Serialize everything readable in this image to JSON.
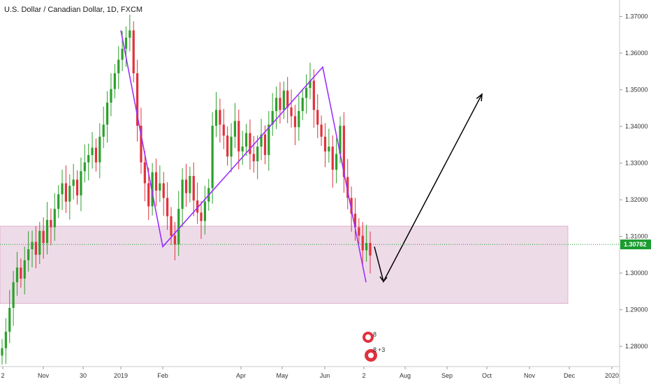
{
  "chart_data": {
    "type": "candlestick",
    "title": "U.S. Dollar / Canadian Dollar, 1D, FXCM",
    "y_ticks": [
      "1.37000",
      "1.36000",
      "1.35000",
      "1.34000",
      "1.33000",
      "1.32000",
      "1.31000",
      "1.30000",
      "1.29000",
      "1.28000"
    ],
    "y_values": [
      1.37,
      1.36,
      1.35,
      1.34,
      1.33,
      1.32,
      1.31,
      1.3,
      1.29,
      1.28
    ],
    "ylim": [
      1.2745,
      1.3745
    ],
    "x_ticks": [
      "2",
      "Nov",
      "30",
      "2019",
      "Feb",
      "Apr",
      "May",
      "Jun",
      "2",
      "Aug",
      "Sep",
      "Oct",
      "Nov",
      "Dec",
      "2020"
    ],
    "current_price": "1.30782",
    "current_price_value": 1.30782,
    "colors": {
      "up": "#2ca02c",
      "down": "#e0323c",
      "pattern": "#9b30ff",
      "zone": "#e8cfe0",
      "price_line": "#1a9c2f",
      "arrow": "#000000"
    },
    "support_zone": {
      "y_low": 1.2917,
      "y_high": 1.3128
    },
    "pattern_line_points": [
      [
        1.3662
      ],
      [
        1.3072
      ],
      [
        1.3562
      ],
      [
        1.2975
      ]
    ],
    "arrow_path": [
      1.3072,
      1.2977,
      1.3488
    ],
    "candles_close": [
      1.2795,
      1.284,
      1.2905,
      1.2975,
      1.3015,
      1.2985,
      1.3035,
      1.3065,
      1.3085,
      1.305,
      1.3115,
      1.3082,
      1.3145,
      1.3125,
      1.3175,
      1.3215,
      1.3245,
      1.3195,
      1.3238,
      1.3255,
      1.3212,
      1.3278,
      1.3302,
      1.3322,
      1.3342,
      1.3302,
      1.3372,
      1.3405,
      1.3465,
      1.3502,
      1.3545,
      1.3582,
      1.3612,
      1.3642,
      1.3662,
      1.3545,
      1.3402,
      1.3302,
      1.3245,
      1.3182,
      1.3275,
      1.3225,
      1.3245,
      1.3205,
      1.3155,
      1.3102,
      1.3078,
      1.3175,
      1.3255,
      1.3218,
      1.3265,
      1.3198,
      1.3165,
      1.3142,
      1.3195,
      1.3232,
      1.3402,
      1.3445,
      1.3405,
      1.3375,
      1.3318,
      1.3372,
      1.3415,
      1.3332,
      1.3345,
      1.3382,
      1.3325,
      1.3305,
      1.3345,
      1.3378,
      1.3322,
      1.3405,
      1.3442,
      1.3478,
      1.3445,
      1.3498,
      1.3452,
      1.3428,
      1.3398,
      1.3442,
      1.3478,
      1.3505,
      1.3525,
      1.3445,
      1.3405,
      1.3372,
      1.3332,
      1.3345,
      1.3282,
      1.3325,
      1.3402,
      1.3262,
      1.3205,
      1.3162,
      1.3125,
      1.3102,
      1.3062,
      1.3082,
      1.3048
    ],
    "xlabel": "",
    "ylabel": ""
  },
  "badges": {
    "top_count": "8",
    "bottom_count": "8",
    "bottom_extra": "+3"
  }
}
